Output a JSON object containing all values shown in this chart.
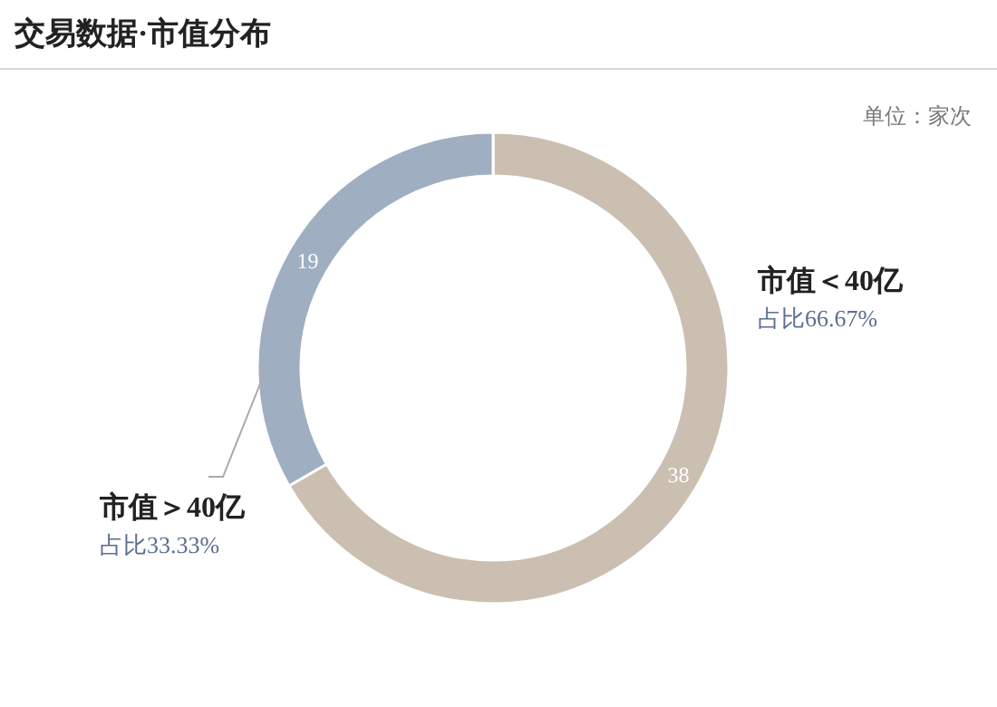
{
  "chart_data": {
    "type": "donut",
    "title": "交易数据·市值分布",
    "subtitle": "单位：家次",
    "categories": [
      "市值＜40亿",
      "市值＞40亿"
    ],
    "values": [
      38,
      19
    ],
    "colors": [
      "#cbbfb1",
      "#9fafc1"
    ],
    "data_labels": true,
    "annotations": [
      "占比66.67%",
      "占比33.33%"
    ]
  }
}
